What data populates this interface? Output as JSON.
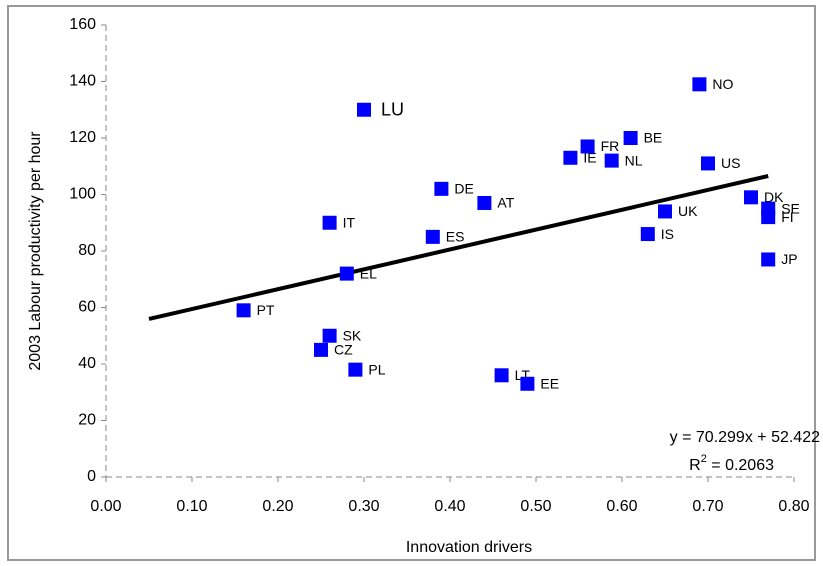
{
  "chart_data": {
    "type": "scatter",
    "x_label": "Innovation drivers",
    "y_label": "2003 Labour productivity per hour",
    "labels": [
      "PT",
      "EL",
      "IT",
      "LU",
      "SK",
      "CZ",
      "PL",
      "ES",
      "DE",
      "AT",
      "LT",
      "EE",
      "IE",
      "FR",
      "NL",
      "BE",
      "IS",
      "UK",
      "NO",
      "US",
      "DK",
      "SE",
      "FI",
      "JP"
    ],
    "x": [
      0.16,
      0.28,
      0.26,
      0.3,
      0.26,
      0.25,
      0.29,
      0.38,
      0.39,
      0.44,
      0.46,
      0.49,
      0.54,
      0.56,
      0.588,
      0.61,
      0.63,
      0.65,
      0.69,
      0.7,
      0.75,
      0.77,
      0.77,
      0.77
    ],
    "values": [
      59,
      72,
      90,
      130,
      50,
      45,
      38,
      85,
      102,
      97,
      36,
      33,
      113,
      117,
      112,
      120,
      86,
      94,
      139,
      111,
      99,
      95,
      92,
      77
    ],
    "color": "#0000ff",
    "trendline": {
      "slope": 70.299,
      "intercept": 52.422,
      "xrange": [
        0.05,
        0.77
      ],
      "equation": "y = 70.299x + 52.422"
    },
    "r2": {
      "prefix": "R",
      "sup": "2",
      "text": " = 0.2063"
    },
    "xlim": [
      0,
      0.8
    ],
    "xticks": [
      {
        "value": 0,
        "label": "0.00"
      },
      {
        "value": 0.1,
        "label": "0.10"
      },
      {
        "value": 0.2,
        "label": "0.20"
      },
      {
        "value": 0.3,
        "label": "0.30"
      },
      {
        "value": 0.4,
        "label": "0.40"
      },
      {
        "value": 0.5,
        "label": "0.50"
      },
      {
        "value": 0.6,
        "label": "0.60"
      },
      {
        "value": 0.7,
        "label": "0.70"
      },
      {
        "value": 0.8,
        "label": "0.80"
      }
    ],
    "ylim": [
      0,
      160
    ],
    "yticks": [
      0,
      20,
      40,
      60,
      80,
      100,
      120,
      140,
      160
    ]
  }
}
